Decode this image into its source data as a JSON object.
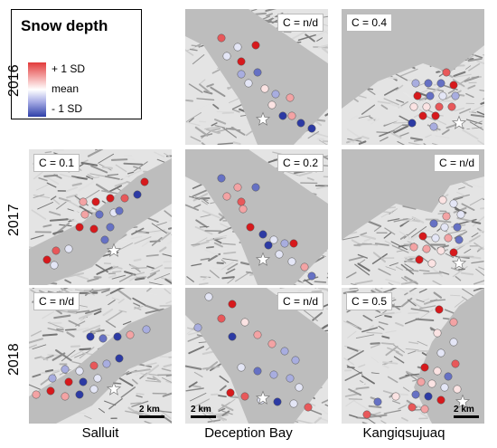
{
  "legend": {
    "title": "Snow depth",
    "plus_label": "+ 1 SD",
    "mean_label": "mean",
    "minus_label": "- 1 SD",
    "colors": {
      "high": "#e23b3b",
      "mean": "#ffffff",
      "low": "#2e3fa8"
    }
  },
  "rows": [
    {
      "year": "2016"
    },
    {
      "year": "2017"
    },
    {
      "year": "2018"
    }
  ],
  "columns": [
    {
      "site": "Salluit"
    },
    {
      "site": "Deception Bay"
    },
    {
      "site": "Kangiqsujuaq"
    }
  ],
  "panels": {
    "r0c1": {
      "c_label": "C = n/d"
    },
    "r0c2": {
      "c_label": "C = 0.4"
    },
    "r1c0": {
      "c_label": "C = 0.1"
    },
    "r1c1": {
      "c_label": "C = 0.2"
    },
    "r1c2": {
      "c_label": "C = n/d"
    },
    "r2c0": {
      "c_label": "C = n/d"
    },
    "r2c1": {
      "c_label": "C = n/d"
    },
    "r2c2": {
      "c_label": "C = 0.5"
    }
  },
  "scale_bar": {
    "label": "2 km"
  },
  "marker": {
    "type": "white-star-icon"
  },
  "map_colors": {
    "water": "#bdbdbd",
    "terrain_light": "#e4e4e4",
    "terrain_dark": "#8a8a8a"
  }
}
